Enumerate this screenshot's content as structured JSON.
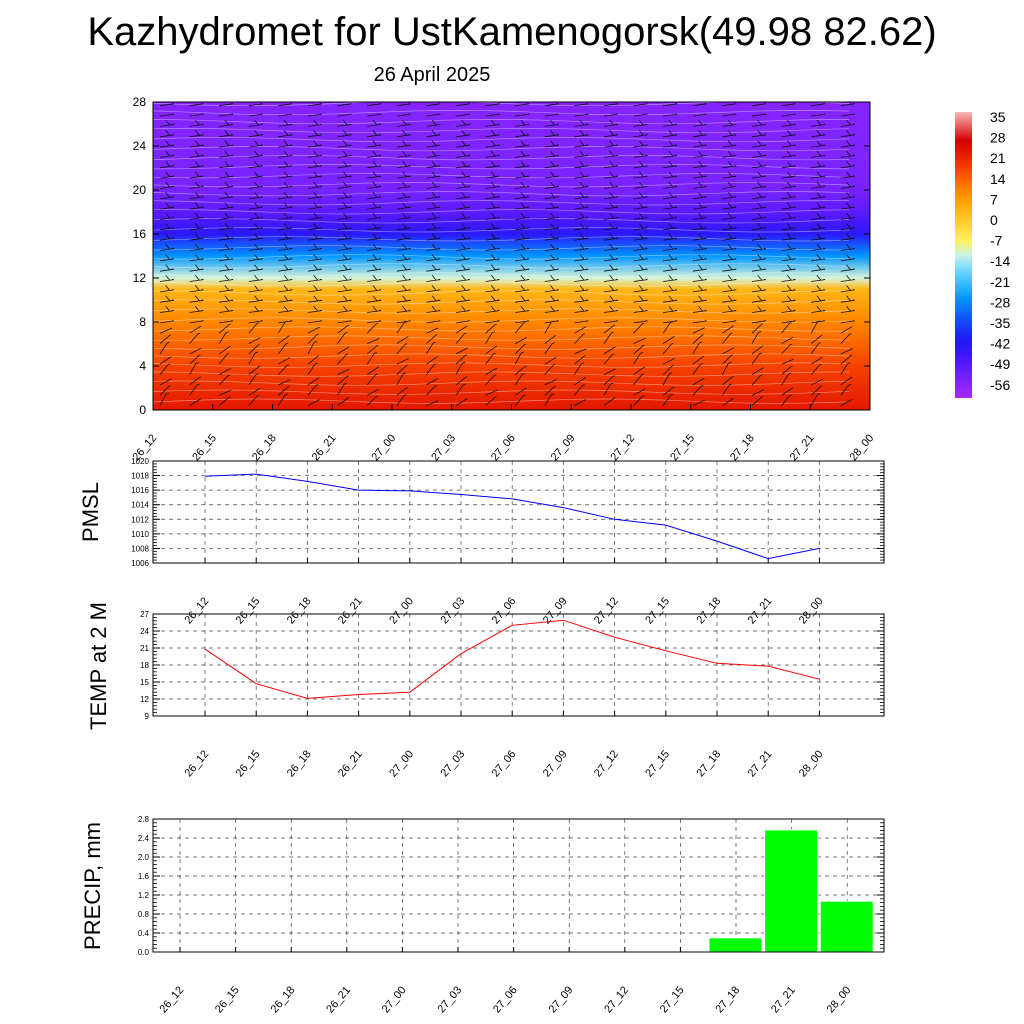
{
  "title": "Kazhydromet for UstKamenogorsk(49.98 82.62)",
  "subtitle": "26 April 2025",
  "time_labels": [
    "26_12",
    "26_15",
    "26_18",
    "26_21",
    "27_00",
    "27_03",
    "27_06",
    "27_09",
    "27_12",
    "27_15",
    "27_18",
    "27_21",
    "28_00"
  ],
  "colors": {
    "pmsl_line": "#0000ff",
    "temp_line": "#ff0000",
    "precip_bar": "#00ff00"
  },
  "chart_data": [
    {
      "type": "heatmap",
      "name": "height-time cross-section with wind barbs",
      "x": [
        "26_12",
        "26_15",
        "26_18",
        "26_21",
        "27_00",
        "27_03",
        "27_06",
        "27_09",
        "27_12",
        "27_15",
        "27_18",
        "27_21",
        "28_00"
      ],
      "ylim": [
        0,
        28
      ],
      "yticks": [
        0,
        4,
        8,
        12,
        16,
        20,
        24,
        28
      ],
      "levels": [
        0,
        4,
        8,
        11,
        12,
        14,
        16,
        18,
        20,
        24,
        28
      ],
      "values_by_level": [
        24,
        18,
        10,
        3,
        -12,
        -28,
        -45,
        -52,
        -56,
        -57,
        -58
      ],
      "colorbar": {
        "labels": [
          "35",
          "28",
          "21",
          "14",
          "7",
          "0",
          "-7",
          "-14",
          "-21",
          "-28",
          "-35",
          "-42",
          "-49",
          "-56"
        ],
        "range": [
          -63,
          38
        ]
      }
    },
    {
      "type": "line",
      "ylabel": "PMSL",
      "categories": [
        "26_12",
        "26_15",
        "26_18",
        "26_21",
        "27_00",
        "27_03",
        "27_06",
        "27_09",
        "27_12",
        "27_15",
        "27_18",
        "27_21",
        "28_00"
      ],
      "values": [
        1017.9,
        1018.2,
        1017.2,
        1016.0,
        1015.9,
        1015.4,
        1014.8,
        1013.6,
        1012.0,
        1011.2,
        1009.0,
        1006.6,
        1008.0
      ],
      "ylim": [
        1006,
        1020
      ],
      "yticks": [
        1006,
        1008,
        1010,
        1012,
        1014,
        1016,
        1018,
        1020
      ]
    },
    {
      "type": "line",
      "ylabel": "TEMP at 2 M",
      "categories": [
        "26_12",
        "26_15",
        "26_18",
        "26_21",
        "27_00",
        "27_03",
        "27_06",
        "27_09",
        "27_12",
        "27_15",
        "27_18",
        "27_21",
        "28_00"
      ],
      "values": [
        20.8,
        14.7,
        12.1,
        12.8,
        13.2,
        20.0,
        25.0,
        25.9,
        22.9,
        20.5,
        18.3,
        17.8,
        15.5
      ],
      "ylim": [
        9,
        27
      ],
      "yticks": [
        9,
        12,
        15,
        18,
        21,
        24,
        27
      ]
    },
    {
      "type": "bar",
      "ylabel": "PRECIP, mm",
      "categories": [
        "26_12",
        "26_15",
        "26_18",
        "26_21",
        "27_00",
        "27_03",
        "27_06",
        "27_09",
        "27_12",
        "27_15",
        "27_18",
        "27_21",
        "28_00"
      ],
      "values": [
        0,
        0,
        0,
        0,
        0,
        0,
        0,
        0,
        0,
        0,
        0.3,
        2.57,
        1.07
      ],
      "ylim": [
        0,
        2.8
      ],
      "yticks": [
        "0.0",
        "0.4",
        "0.8",
        "1.2",
        "1.6",
        "2.0",
        "2.4",
        "2.8"
      ]
    }
  ]
}
